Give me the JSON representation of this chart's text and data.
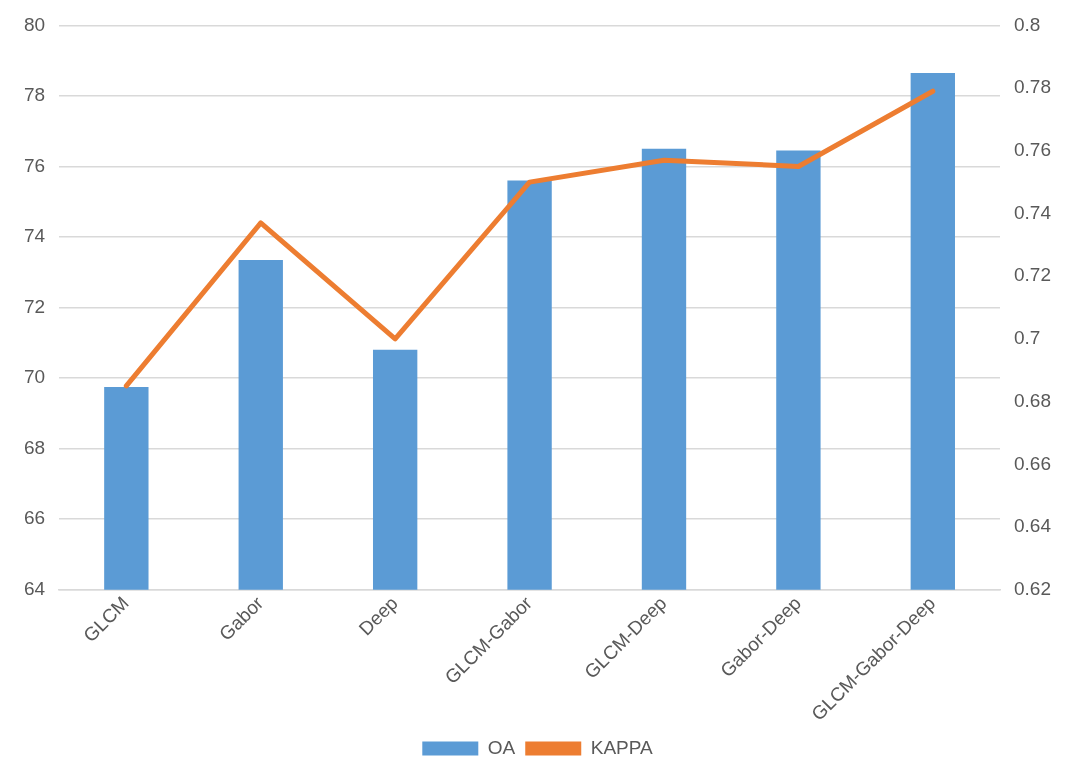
{
  "chart_data": {
    "type": "bar",
    "categories": [
      "GLCM",
      "Gabor",
      "Deep",
      "GLCM-Gabor",
      "GLCM-Deep",
      "Gabor-Deep",
      "GLCM-Gabor-Deep"
    ],
    "series": [
      {
        "name": "OA",
        "type": "bar",
        "color": "#5b9bd5",
        "values": [
          69.75,
          73.35,
          70.8,
          75.6,
          76.5,
          76.45,
          78.65
        ]
      },
      {
        "name": "KAPPA",
        "type": "line",
        "axis": "y2",
        "color": "#ed7d31",
        "values": [
          0.685,
          0.737,
          0.7,
          0.75,
          0.757,
          0.755,
          0.779
        ]
      }
    ],
    "ylim": [
      64,
      80
    ],
    "yticks": [
      64,
      66,
      68,
      70,
      72,
      74,
      76,
      78,
      80
    ],
    "y2lim": [
      0.62,
      0.8
    ],
    "y2ticks": [
      0.62,
      0.64,
      0.66,
      0.68,
      0.7,
      0.72,
      0.74,
      0.76,
      0.78,
      0.8
    ],
    "grid": "y",
    "legend": "bottom",
    "marker": "none"
  }
}
